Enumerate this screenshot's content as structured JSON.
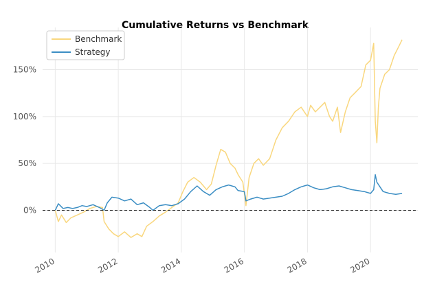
{
  "chart_data": {
    "type": "line",
    "title": "Cumulative Returns vs Benchmark",
    "xlabel": "",
    "ylabel": "",
    "xlim": [
      2009.6,
      2021.5
    ],
    "ylim": [
      -0.45,
      1.95
    ],
    "x_ticks": [
      {
        "value": 2010,
        "label": "2010"
      },
      {
        "value": 2012,
        "label": "2012"
      },
      {
        "value": 2014,
        "label": "2014"
      },
      {
        "value": 2016,
        "label": "2016"
      },
      {
        "value": 2018,
        "label": "2018"
      },
      {
        "value": 2020,
        "label": "2020"
      }
    ],
    "y_ticks": [
      {
        "value": 0.0,
        "label": "0%"
      },
      {
        "value": 0.5,
        "label": "50%"
      },
      {
        "value": 1.0,
        "label": "100%"
      },
      {
        "value": 1.5,
        "label": "150%"
      }
    ],
    "grid": true,
    "legend_position": "top-left",
    "baseline": 0,
    "series": [
      {
        "name": "Benchmark",
        "color": "#f9d77e",
        "x": [
          2010.0,
          2010.1,
          2010.2,
          2010.35,
          2010.5,
          2010.7,
          2010.9,
          2011.1,
          2011.3,
          2011.5,
          2011.55,
          2011.7,
          2011.85,
          2012.0,
          2012.2,
          2012.4,
          2012.6,
          2012.75,
          2012.9,
          2013.1,
          2013.3,
          2013.5,
          2013.7,
          2013.9,
          2014.05,
          2014.2,
          2014.4,
          2014.6,
          2014.8,
          2014.95,
          2015.1,
          2015.25,
          2015.4,
          2015.55,
          2015.7,
          2015.8,
          2015.95,
          2016.05,
          2016.15,
          2016.3,
          2016.45,
          2016.6,
          2016.8,
          2017.0,
          2017.2,
          2017.4,
          2017.6,
          2017.8,
          2018.0,
          2018.1,
          2018.25,
          2018.4,
          2018.55,
          2018.7,
          2018.8,
          2018.95,
          2019.05,
          2019.2,
          2019.35,
          2019.5,
          2019.7,
          2019.85,
          2020.0,
          2020.1,
          2020.15,
          2020.2,
          2020.25,
          2020.3,
          2020.45,
          2020.6,
          2020.75,
          2020.9,
          2021.0
        ],
        "values": [
          0.0,
          -0.12,
          -0.05,
          -0.13,
          -0.08,
          -0.05,
          -0.02,
          0.02,
          0.04,
          0.03,
          -0.12,
          -0.2,
          -0.25,
          -0.28,
          -0.23,
          -0.29,
          -0.25,
          -0.28,
          -0.17,
          -0.12,
          -0.06,
          -0.02,
          0.03,
          0.08,
          0.2,
          0.3,
          0.35,
          0.3,
          0.22,
          0.28,
          0.48,
          0.65,
          0.62,
          0.5,
          0.45,
          0.38,
          0.3,
          0.05,
          0.35,
          0.5,
          0.55,
          0.48,
          0.55,
          0.75,
          0.88,
          0.95,
          1.05,
          1.1,
          1.0,
          1.12,
          1.05,
          1.1,
          1.15,
          1.0,
          0.95,
          1.1,
          0.83,
          1.05,
          1.2,
          1.25,
          1.32,
          1.55,
          1.6,
          1.78,
          0.95,
          0.72,
          1.1,
          1.3,
          1.45,
          1.5,
          1.65,
          1.75,
          1.82
        ]
      },
      {
        "name": "Strategy",
        "color": "#3a8dc3",
        "x": [
          2010.0,
          2010.1,
          2010.25,
          2010.4,
          2010.55,
          2010.7,
          2010.85,
          2011.0,
          2011.2,
          2011.4,
          2011.55,
          2011.65,
          2011.8,
          2012.0,
          2012.2,
          2012.4,
          2012.6,
          2012.8,
          2013.0,
          2013.1,
          2013.3,
          2013.5,
          2013.7,
          2013.9,
          2014.1,
          2014.3,
          2014.5,
          2014.7,
          2014.9,
          2015.1,
          2015.3,
          2015.5,
          2015.7,
          2015.8,
          2016.0,
          2016.05,
          2016.2,
          2016.4,
          2016.6,
          2016.8,
          2017.0,
          2017.2,
          2017.4,
          2017.6,
          2017.8,
          2018.0,
          2018.2,
          2018.4,
          2018.6,
          2018.8,
          2019.0,
          2019.2,
          2019.4,
          2019.6,
          2019.8,
          2020.0,
          2020.1,
          2020.15,
          2020.2,
          2020.3,
          2020.4,
          2020.6,
          2020.8,
          2021.0
        ],
        "values": [
          0.0,
          0.07,
          0.02,
          0.03,
          0.02,
          0.03,
          0.05,
          0.04,
          0.06,
          0.03,
          0.0,
          0.08,
          0.14,
          0.13,
          0.1,
          0.12,
          0.06,
          0.08,
          0.03,
          0.0,
          0.05,
          0.06,
          0.05,
          0.07,
          0.12,
          0.2,
          0.26,
          0.2,
          0.16,
          0.22,
          0.25,
          0.27,
          0.25,
          0.21,
          0.2,
          0.1,
          0.12,
          0.14,
          0.12,
          0.13,
          0.14,
          0.15,
          0.18,
          0.22,
          0.25,
          0.27,
          0.24,
          0.22,
          0.23,
          0.25,
          0.26,
          0.24,
          0.22,
          0.21,
          0.2,
          0.18,
          0.22,
          0.38,
          0.3,
          0.25,
          0.2,
          0.18,
          0.17,
          0.18
        ]
      }
    ]
  }
}
